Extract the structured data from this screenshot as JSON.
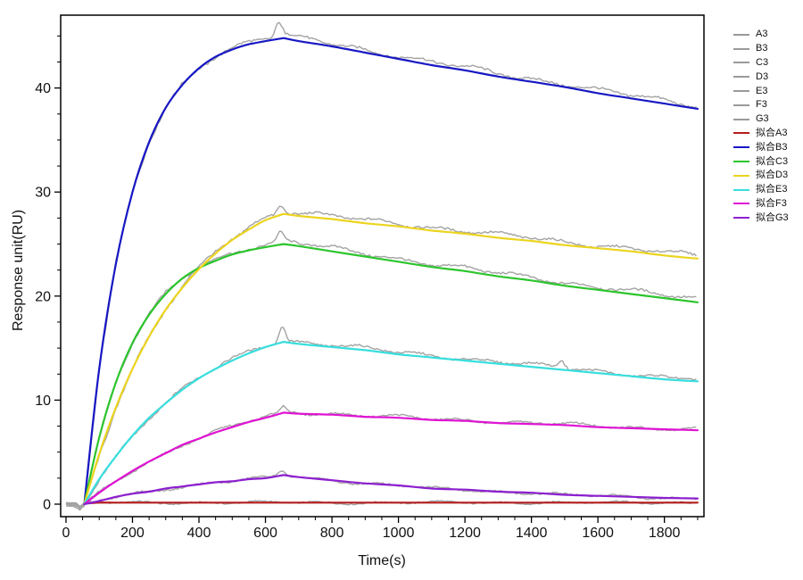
{
  "figure": {
    "background": "#ffffff",
    "axis_color": "#000000",
    "tick_label_color": "#111111",
    "raw_trace_color": "#a3a3a3",
    "legend_raw_swatch_color": "#9a9a9a"
  },
  "chart_data": {
    "type": "line",
    "title": "",
    "xlabel": "Time(s)",
    "ylabel": "Response unit(RU)",
    "xlim": [
      -16,
      1919
    ],
    "ylim": [
      -1.2,
      47.0
    ],
    "x_major_ticks": [
      0,
      200,
      400,
      600,
      800,
      1000,
      1200,
      1400,
      1600,
      1800
    ],
    "x_minor_step": 50,
    "x_minor_max": 1900,
    "y_major_ticks": [
      0,
      10,
      20,
      30,
      40
    ],
    "y_minor_step": 2.5,
    "y_minor_max": 45,
    "grid": false,
    "legend_position": "right",
    "injection_start_s": 55,
    "injection_stop_s": 655,
    "t_samples": [
      0,
      55,
      100,
      150,
      200,
      250,
      300,
      350,
      400,
      450,
      500,
      550,
      600,
      655,
      700,
      800,
      900,
      1000,
      1100,
      1200,
      1300,
      1400,
      1500,
      1600,
      1700,
      1800,
      1900
    ],
    "fit_series": [
      {
        "name": "拟合A3",
        "color": "#b51d1d",
        "values": [
          null,
          0.05,
          0.15,
          0.15,
          0.15,
          0.15,
          0.15,
          0.15,
          0.15,
          0.15,
          0.15,
          0.15,
          0.15,
          0.15,
          0.15,
          0.15,
          0.15,
          0.15,
          0.15,
          0.15,
          0.15,
          0.15,
          0.15,
          0.15,
          0.15,
          0.15,
          0.15
        ]
      },
      {
        "name": "拟合B3",
        "color": "#1717c4",
        "values": [
          null,
          0,
          13.0,
          23.1,
          30.0,
          34.8,
          38.1,
          40.3,
          41.9,
          43.0,
          43.7,
          44.2,
          44.5,
          44.8,
          44.5,
          44.0,
          43.4,
          42.8,
          42.2,
          41.7,
          41.1,
          40.6,
          40.1,
          39.5,
          39.0,
          38.5,
          38.0
        ]
      },
      {
        "name": "拟合C3",
        "color": "#2cc52c",
        "values": [
          null,
          0,
          6.4,
          11.7,
          15.5,
          18.2,
          20.2,
          21.7,
          22.7,
          23.4,
          24.0,
          24.4,
          24.7,
          25.0,
          24.8,
          24.3,
          23.8,
          23.3,
          22.8,
          22.4,
          21.9,
          21.5,
          21.0,
          20.6,
          20.2,
          19.8,
          19.4
        ]
      },
      {
        "name": "拟合D3",
        "color": "#ecd41f",
        "values": [
          null,
          0,
          4.8,
          9.3,
          13.0,
          16.1,
          18.7,
          20.8,
          22.6,
          24.1,
          25.4,
          26.4,
          27.3,
          27.9,
          27.7,
          27.4,
          27.0,
          26.7,
          26.3,
          26.0,
          25.6,
          25.3,
          24.9,
          24.6,
          24.3,
          23.9,
          23.6
        ]
      },
      {
        "name": "拟合E3",
        "color": "#38dede",
        "values": [
          null,
          0,
          2.4,
          4.6,
          6.6,
          8.3,
          9.7,
          11.0,
          12.1,
          13.0,
          13.8,
          14.5,
          15.1,
          15.6,
          15.4,
          15.1,
          14.8,
          14.4,
          14.1,
          13.8,
          13.5,
          13.2,
          12.9,
          12.6,
          12.3,
          12.0,
          11.8
        ]
      },
      {
        "name": "拟合F3",
        "color": "#e013d4",
        "values": [
          null,
          0,
          1.1,
          2.2,
          3.2,
          4.1,
          4.9,
          5.7,
          6.3,
          6.9,
          7.4,
          7.9,
          8.3,
          8.8,
          8.7,
          8.6,
          8.4,
          8.3,
          8.1,
          8.0,
          7.8,
          7.7,
          7.6,
          7.4,
          7.3,
          7.2,
          7.1
        ]
      },
      {
        "name": "拟合G3",
        "color": "#8d1fd0",
        "values": [
          null,
          0,
          0.3,
          0.7,
          1.0,
          1.2,
          1.5,
          1.7,
          1.9,
          2.1,
          2.2,
          2.4,
          2.5,
          2.8,
          2.6,
          2.3,
          2.0,
          1.8,
          1.5,
          1.4,
          1.2,
          1.1,
          0.9,
          0.8,
          0.7,
          0.6,
          0.55
        ]
      }
    ],
    "raw_series": [
      {
        "name": "A3",
        "fit_index": 0,
        "noise": 0.18,
        "bias": 0.0,
        "spikes": []
      },
      {
        "name": "B3",
        "fit_index": 1,
        "noise": 0.3,
        "bias": 0.3,
        "spikes": [
          {
            "t": 640,
            "v": 1.5
          }
        ]
      },
      {
        "name": "C3",
        "fit_index": 2,
        "noise": 0.28,
        "bias": 0.3,
        "spikes": [
          {
            "t": 645,
            "v": 0.9
          }
        ]
      },
      {
        "name": "D3",
        "fit_index": 3,
        "noise": 0.28,
        "bias": 0.3,
        "spikes": [
          {
            "t": 645,
            "v": 0.8
          }
        ]
      },
      {
        "name": "E3",
        "fit_index": 4,
        "noise": 0.25,
        "bias": 0.2,
        "spikes": [
          {
            "t": 650,
            "v": 1.6
          },
          {
            "t": 1490,
            "v": 0.8
          }
        ]
      },
      {
        "name": "F3",
        "fit_index": 5,
        "noise": 0.22,
        "bias": 0.1,
        "spikes": [
          {
            "t": 655,
            "v": 0.5
          }
        ]
      },
      {
        "name": "G3",
        "fit_index": 6,
        "noise": 0.2,
        "bias": 0.0,
        "spikes": [
          {
            "t": 650,
            "v": 0.55
          }
        ]
      }
    ],
    "baseline_dip": {
      "t": 42,
      "v": -0.38,
      "half_width": 16
    }
  }
}
